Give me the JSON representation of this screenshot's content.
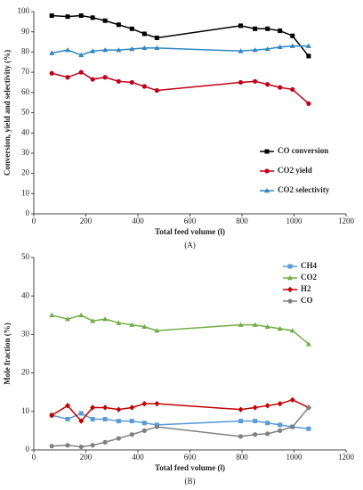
{
  "chart_data": [
    {
      "type": "line",
      "ylabel": "Conversion, yield and selectivity (%)",
      "xlabel": "Total feed volume (l)",
      "caption": "(A)",
      "xlim": [
        0,
        1200
      ],
      "xticks": [
        0,
        200,
        400,
        600,
        800,
        1000,
        1200
      ],
      "ylim": [
        0,
        100
      ],
      "yticks": [
        0,
        10,
        20,
        30,
        40,
        50,
        60,
        70,
        80,
        90,
        100
      ],
      "legend": "lower right",
      "grid": false,
      "x": [
        69,
        130,
        182,
        226,
        274,
        326,
        377,
        425,
        473,
        795,
        850,
        898,
        946,
        994,
        1056
      ],
      "series": [
        {
          "name": "CO conversion",
          "color": "#000000",
          "marker": "square",
          "values": [
            98,
            97.5,
            98,
            97,
            95.5,
            93.5,
            91.5,
            89,
            87,
            93,
            91.5,
            91.5,
            90.5,
            88,
            78
          ]
        },
        {
          "name": "CO2 yield",
          "color": "#c00018",
          "marker": "circle",
          "values": [
            69.5,
            67.5,
            70,
            66.5,
            67.5,
            65.5,
            65,
            63,
            61,
            65,
            65.5,
            64,
            62.5,
            61.5,
            54.5
          ]
        },
        {
          "name": "CO2 selectivity",
          "color": "#2e86c1",
          "marker": "triangle",
          "values": [
            79.5,
            81,
            78.5,
            80.5,
            81,
            81,
            81.5,
            82,
            82,
            80.5,
            81,
            81.5,
            82.5,
            83,
            83
          ]
        }
      ]
    },
    {
      "type": "line",
      "ylabel": "Mole fraction (%)",
      "xlabel": "Total feed volume (l)",
      "caption": "(B)",
      "xlim": [
        0,
        1200
      ],
      "xticks": [
        0,
        200,
        400,
        600,
        800,
        1000,
        1200
      ],
      "ylim": [
        0,
        50
      ],
      "yticks": [
        0,
        10,
        20,
        30,
        40,
        50
      ],
      "legend": "upper right",
      "grid": false,
      "x": [
        69,
        130,
        182,
        226,
        274,
        326,
        377,
        425,
        473,
        795,
        850,
        898,
        946,
        994,
        1056
      ],
      "series": [
        {
          "name": "CH4",
          "color": "#5b9bd5",
          "marker": "square",
          "values": [
            9,
            8,
            9.5,
            8,
            8,
            7.5,
            7.5,
            7,
            6.5,
            7.5,
            7.5,
            7,
            6.5,
            6,
            5.5
          ]
        },
        {
          "name": "CO2",
          "color": "#70ad47",
          "marker": "triangle",
          "values": [
            35,
            34,
            35,
            33.5,
            34,
            33,
            32.5,
            32,
            31,
            32.5,
            32.5,
            32,
            31.5,
            31,
            27.5
          ]
        },
        {
          "name": "H2",
          "color": "#c00000",
          "marker": "diamond",
          "values": [
            9,
            11.5,
            7.5,
            11,
            11,
            10.5,
            11,
            12,
            12,
            10.5,
            11,
            11.5,
            12,
            13,
            11
          ]
        },
        {
          "name": "CO",
          "color": "#808080",
          "marker": "circle",
          "values": [
            1,
            1.2,
            0.8,
            1.2,
            2,
            3,
            4,
            5,
            6,
            3.5,
            4,
            4.2,
            5,
            6,
            11
          ]
        }
      ]
    }
  ]
}
